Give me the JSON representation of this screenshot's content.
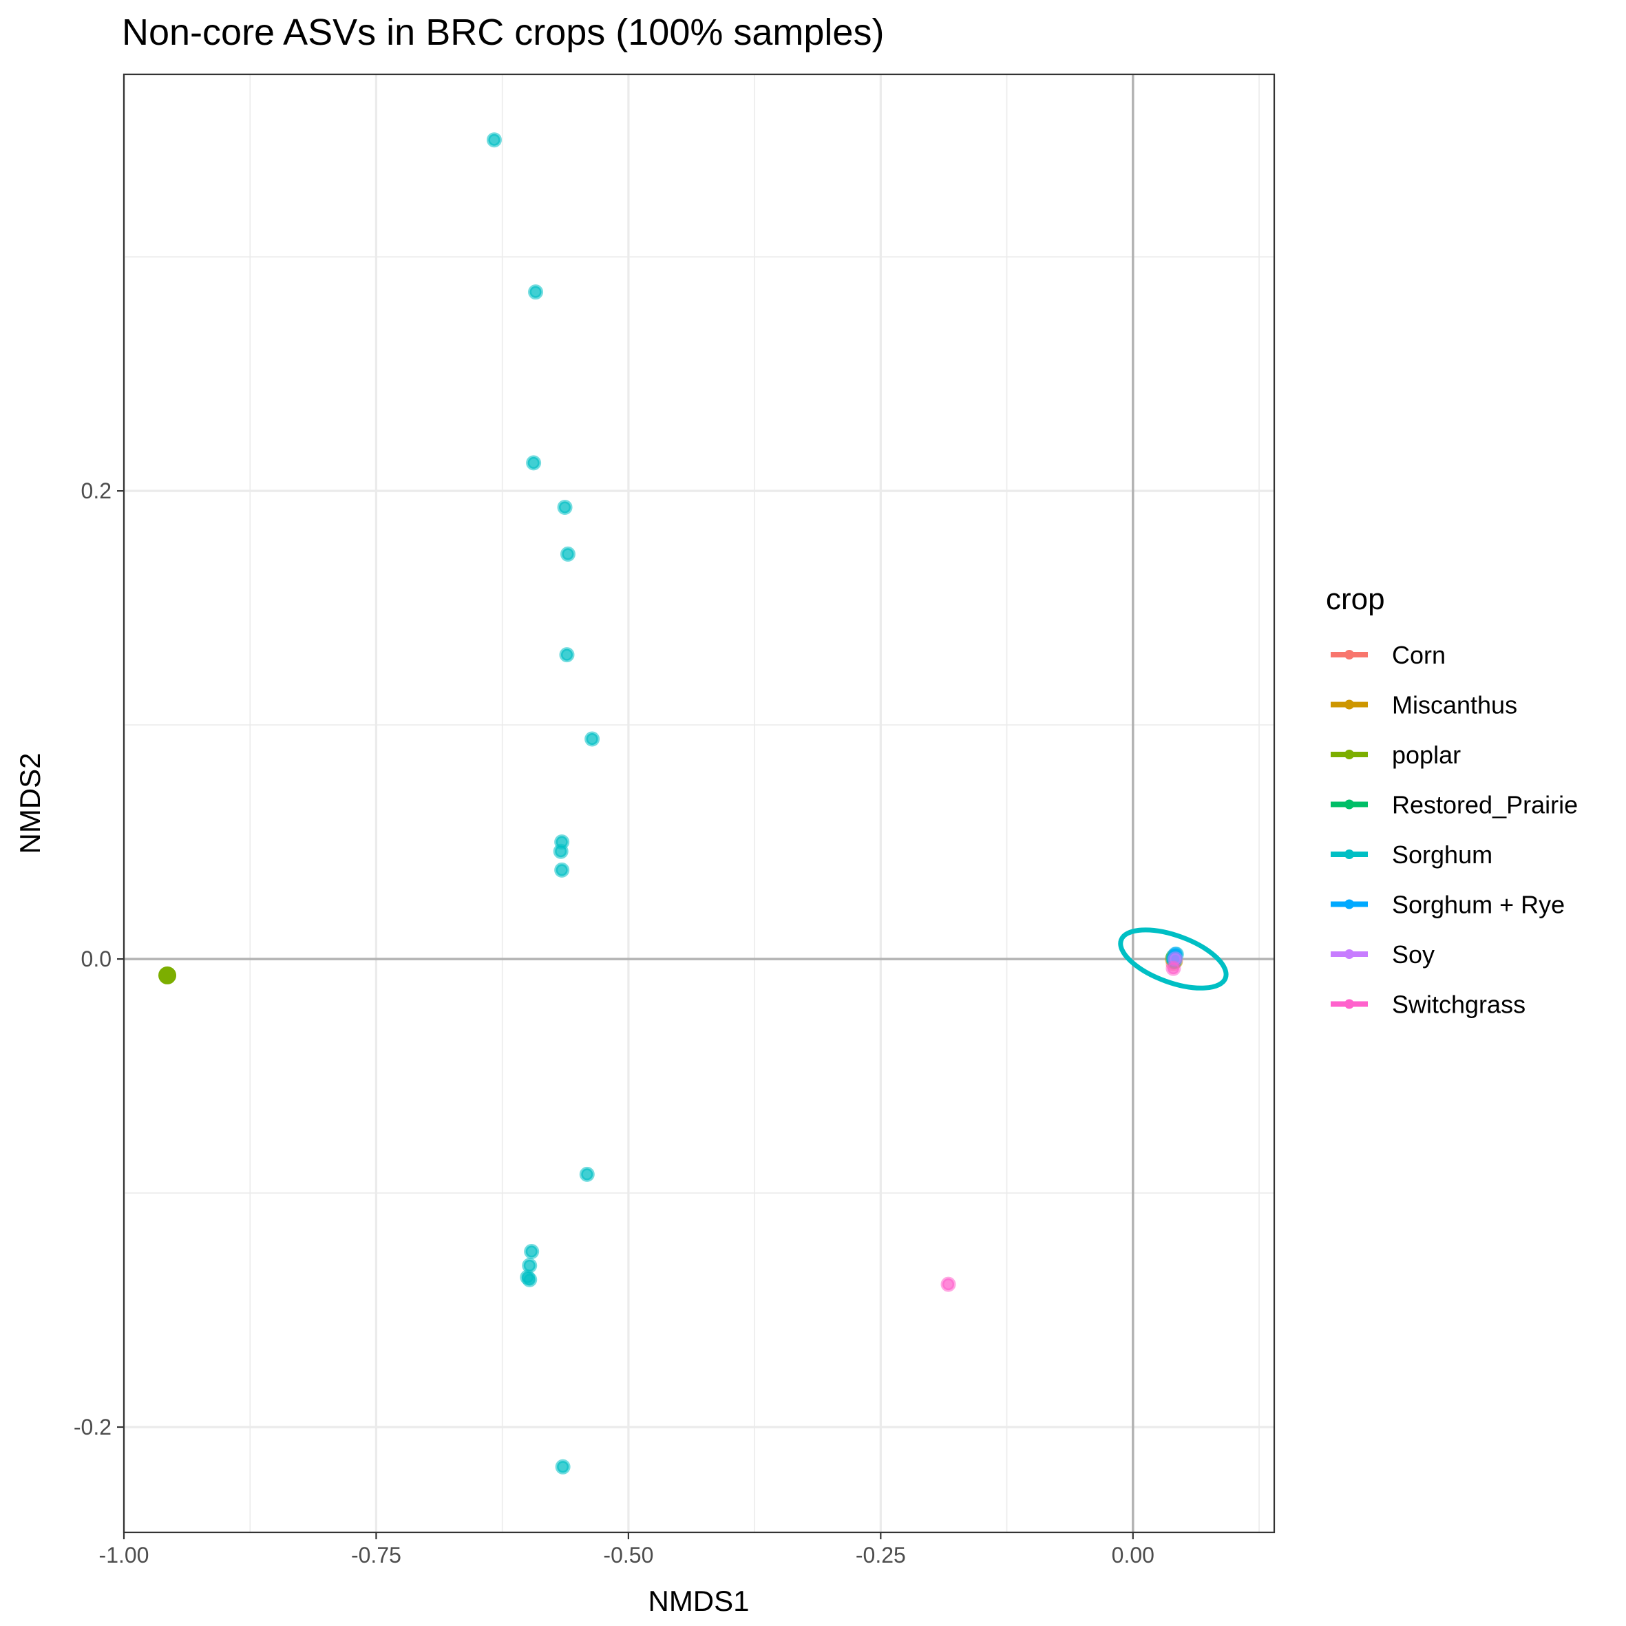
{
  "chart_data": {
    "type": "scatter",
    "title": "Non-core ASVs in BRC crops (100% samples)",
    "xlabel": "NMDS1",
    "ylabel": "NMDS2",
    "xlim": [
      -1.0,
      0.14
    ],
    "ylim": [
      -0.245,
      0.378
    ],
    "x_ticks": [
      -1.0,
      -0.75,
      -0.5,
      -0.25,
      0.0
    ],
    "x_tick_labels": [
      "-1.00",
      "-0.75",
      "-0.50",
      "-0.25",
      "0.00"
    ],
    "y_ticks": [
      -0.2,
      0.0,
      0.2
    ],
    "y_tick_labels": [
      "-0.2",
      "0.0",
      "0.2"
    ],
    "grid": true,
    "reference_lines": {
      "x": 0.0,
      "y": 0.0
    },
    "legend": {
      "title": "crop",
      "placement": "right",
      "entries": [
        {
          "label": "Corn",
          "color": "#F8766D"
        },
        {
          "label": "Miscanthus",
          "color": "#CD9600"
        },
        {
          "label": "poplar",
          "color": "#7CAE00"
        },
        {
          "label": "Restored_Prairie",
          "color": "#00BE67"
        },
        {
          "label": "Sorghum",
          "color": "#00BFC4"
        },
        {
          "label": "Sorghum + Rye",
          "color": "#00A9FF"
        },
        {
          "label": "Soy",
          "color": "#C77CFF"
        },
        {
          "label": "Switchgrass",
          "color": "#FF61CC"
        }
      ]
    },
    "series": [
      {
        "name": "Corn",
        "color": "#F8766D",
        "points": [
          [
            0.04,
            -0.002
          ],
          [
            0.041,
            0.001
          ]
        ]
      },
      {
        "name": "Miscanthus",
        "color": "#CD9600",
        "points": [
          [
            0.039,
            0.0
          ],
          [
            0.042,
            -0.001
          ]
        ]
      },
      {
        "name": "poplar",
        "color": "#7CAE00",
        "points": [
          [
            -0.957,
            -0.007
          ]
        ]
      },
      {
        "name": "Restored_Prairie",
        "color": "#00BE67",
        "points": [
          [
            0.04,
            0.001
          ],
          [
            0.041,
            -0.001
          ]
        ]
      },
      {
        "name": "Sorghum",
        "color": "#00BFC4",
        "points": [
          [
            -0.633,
            0.35
          ],
          [
            -0.592,
            0.285
          ],
          [
            -0.594,
            0.212
          ],
          [
            -0.563,
            0.193
          ],
          [
            -0.56,
            0.173
          ],
          [
            -0.561,
            0.13
          ],
          [
            -0.536,
            0.094
          ],
          [
            -0.566,
            0.05
          ],
          [
            -0.567,
            0.046
          ],
          [
            -0.566,
            0.038
          ],
          [
            -0.541,
            -0.092
          ],
          [
            -0.596,
            -0.125
          ],
          [
            -0.598,
            -0.131
          ],
          [
            -0.6,
            -0.136
          ],
          [
            -0.598,
            -0.137
          ],
          [
            -0.565,
            -0.217
          ],
          [
            0.04,
            0.0
          ],
          [
            0.043,
            0.002
          ]
        ]
      },
      {
        "name": "Sorghum + Rye",
        "color": "#00A9FF",
        "points": [
          [
            0.042,
            0.002
          ],
          [
            0.041,
            0.0
          ]
        ]
      },
      {
        "name": "Soy",
        "color": "#C77CFF",
        "points": [
          [
            0.042,
            0.0
          ]
        ]
      },
      {
        "name": "Switchgrass",
        "color": "#FF61CC",
        "points": [
          [
            -0.183,
            -0.139
          ],
          [
            0.04,
            -0.004
          ]
        ]
      }
    ],
    "ellipses": [
      {
        "series": "Sorghum",
        "color": "#00BFC4",
        "center": [
          0.04,
          0.0
        ],
        "semi_axis_x": 0.055,
        "semi_axis_y": 0.01,
        "rotation_deg": 20
      }
    ]
  }
}
